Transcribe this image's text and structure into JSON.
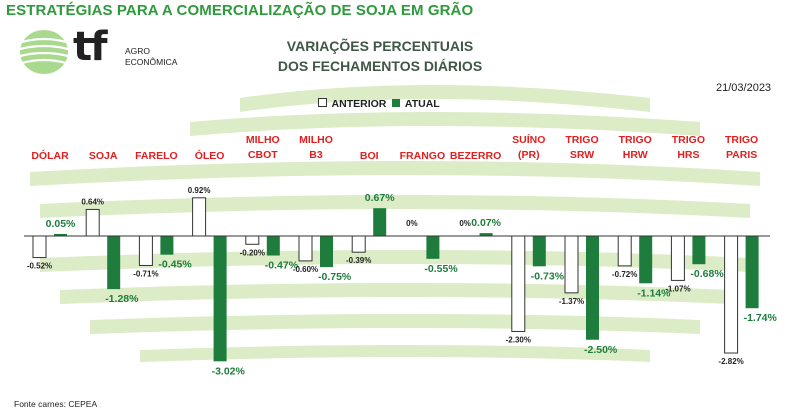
{
  "header": {
    "title": "ESTRATÉGIAS PARA A COMERCIALIZAÇÃO DE SOJA EM GRÃO"
  },
  "logo": {
    "mark": "tf",
    "line1": "AGRO",
    "line2": "ECONÔMICA"
  },
  "chart_title": {
    "line1": "VARIAÇÕES PERCENTUAIS",
    "line2": "DOS FECHAMENTOS DIÁRIOS"
  },
  "date": "21/03/2023",
  "legend": {
    "anterior": "ANTERIOR",
    "atual": "ATUAL"
  },
  "source": "Fonte carnes: CEPEA",
  "colors": {
    "title_green": "#2e9a3c",
    "atual": "#1e7d3c",
    "anterior": "#ffffff",
    "category": "#e02020"
  },
  "chart_data": {
    "type": "bar",
    "categories": [
      [
        "DÓLAR"
      ],
      [
        "SOJA"
      ],
      [
        "FARELO"
      ],
      [
        "ÓLEO"
      ],
      [
        "MILHO",
        "CBOT"
      ],
      [
        "MILHO",
        "B3"
      ],
      [
        "BOI"
      ],
      [
        "FRANGO"
      ],
      [
        "BEZERRO"
      ],
      [
        "SUÍNO",
        "(PR)"
      ],
      [
        "TRIGO",
        "SRW"
      ],
      [
        "TRIGO",
        "HRW"
      ],
      [
        "TRIGO",
        "HRS"
      ],
      [
        "TRIGO",
        "PARIS"
      ]
    ],
    "series": [
      {
        "name": "ANTERIOR",
        "values": [
          -0.52,
          0.64,
          -0.71,
          0.92,
          -0.2,
          -0.6,
          -0.39,
          0,
          0,
          -2.3,
          -1.37,
          -0.72,
          -1.07,
          -2.82
        ],
        "labels": [
          "-0.52%",
          "0.64%",
          "-0.71%",
          "0.92%",
          "-0.20%",
          "-0.60%",
          "-0.39%",
          "0%",
          "0%",
          "-2.30%",
          "-1.37%",
          "-0.72%",
          "-1.07%",
          "-2.82%"
        ]
      },
      {
        "name": "ATUAL",
        "values": [
          0.05,
          -1.28,
          -0.45,
          -3.02,
          -0.47,
          -0.75,
          0.67,
          -0.55,
          0.07,
          -0.73,
          -2.5,
          -1.14,
          -0.68,
          -1.74
        ],
        "labels": [
          "0.05%",
          "-1.28%",
          "-0.45%",
          "-3.02%",
          "-0.47%",
          "-0.75%",
          "0.67%",
          "-0.55%",
          "0.07%",
          "-0.73%",
          "-2.50%",
          "-1.14%",
          "-0.68%",
          "-1.74%"
        ]
      }
    ],
    "unit": "%",
    "ylim": [
      -3.02,
      0.92
    ],
    "grid": false,
    "legend_position": "top-center"
  }
}
